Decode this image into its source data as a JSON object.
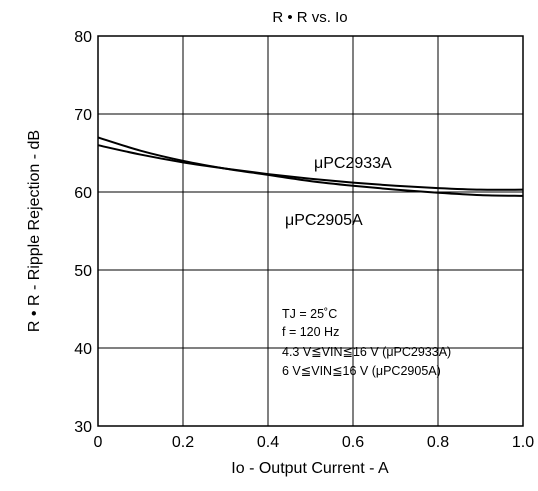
{
  "chart_data": {
    "type": "line",
    "title": "R • R vs. Io",
    "xlabel": "Io - Output Current - A",
    "ylabel": "R • R - Ripple Rejection - dB",
    "xlim": [
      0,
      1.0
    ],
    "ylim": [
      30,
      80
    ],
    "xticks": [
      "0",
      "0.2",
      "0.4",
      "0.6",
      "0.8",
      "1.0"
    ],
    "yticks": [
      "30",
      "40",
      "50",
      "60",
      "70",
      "80"
    ],
    "grid": true,
    "series": [
      {
        "name": "μPC2933A",
        "x": [
          0,
          0.1,
          0.2,
          0.3,
          0.4,
          0.5,
          0.6,
          0.7,
          0.8,
          0.9,
          1.0
        ],
        "y": [
          66.0,
          64.8,
          63.8,
          63.0,
          62.3,
          61.7,
          61.2,
          60.8,
          60.5,
          60.3,
          60.3
        ]
      },
      {
        "name": "μPC2905A",
        "x": [
          0,
          0.1,
          0.2,
          0.3,
          0.4,
          0.5,
          0.6,
          0.7,
          0.8,
          0.9,
          1.0
        ],
        "y": [
          67.0,
          65.3,
          64.0,
          63.0,
          62.2,
          61.4,
          60.8,
          60.3,
          59.9,
          59.6,
          59.5
        ]
      }
    ],
    "conditions": [
      "TJ = 25˚C",
      "f = 120 Hz",
      "4.3 V≦VIN≦16 V (μPC2933A)",
      "6 V≦VIN≦16 V (μPC2905A)"
    ]
  }
}
